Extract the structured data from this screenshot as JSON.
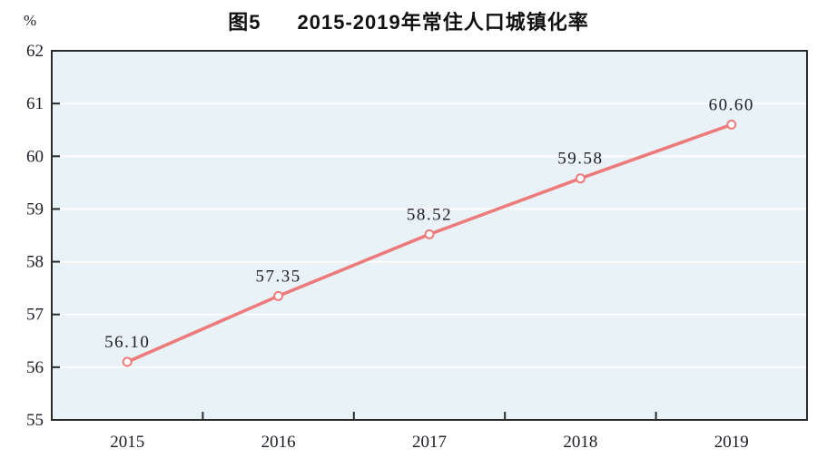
{
  "header": {
    "figure_label": "图5",
    "title": "2015-2019年常住人口城镇化率"
  },
  "chart_data": {
    "type": "line",
    "title": "图5 2015-2019年常住人口城镇化率",
    "unit_label": "%",
    "xlabel": "",
    "ylabel": "%",
    "categories": [
      "2015",
      "2016",
      "2017",
      "2018",
      "2019"
    ],
    "series": [
      {
        "name": "常住人口城镇化率",
        "values": [
          56.1,
          57.35,
          58.52,
          59.58,
          60.6
        ]
      }
    ],
    "data_labels": [
      "56.10",
      "57.35",
      "58.52",
      "59.58",
      "60.60"
    ],
    "ylim": [
      55,
      62
    ],
    "yticks": [
      55,
      56,
      57,
      58,
      59,
      60,
      61,
      62
    ],
    "grid": "horizontal",
    "legend_position": "none",
    "marker": "open-circle"
  },
  "colors": {
    "line": "#ee7b7b",
    "marker_fill": "#ffffff",
    "plot_bg": "#e9f2f6",
    "grid": "#ffffff",
    "frame": "#2b2b2b",
    "tick": "#2b2b2b",
    "text": "#1c1c26",
    "title_text": "#111111"
  }
}
